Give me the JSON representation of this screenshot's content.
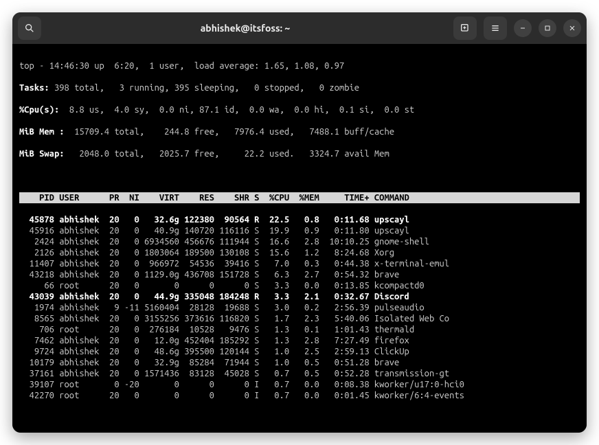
{
  "titlebar": {
    "title": "abhishek@itsfoss: ~"
  },
  "summary": {
    "line1_a": "top - 14:46:30 up  6:20,  1 user,  load average: 1.65, 1.08, 0.97",
    "tasks_label": "Tasks:",
    "tasks_rest": " 398 total,   3 running, 395 sleeping,   0 stopped,   0 zombie",
    "cpu_label": "%Cpu(s):",
    "cpu_rest": "  8.8 us,  4.0 sy,  0.0 ni, 87.1 id,  0.0 wa,  0.0 hi,  0.1 si,  0.0 st",
    "mem_label": "MiB Mem :",
    "mem_rest": "  15709.4 total,    244.8 free,   7976.4 used,   7488.1 buff/cache",
    "swap_label": "MiB Swap:",
    "swap_rest": "   2048.0 total,   2025.7 free,     22.2 used.   3324.7 avail Mem"
  },
  "columns": "    PID USER      PR  NI    VIRT    RES    SHR S  %CPU  %MEM     TIME+ COMMAND         ",
  "rows": [
    {
      "hl": true,
      "text": "  45878 abhishek  20   0   32.6g 122380  90564 R  22.5   0.8   0:11.68 upscayl         "
    },
    {
      "hl": false,
      "text": "  45916 abhishek  20   0   40.9g 140720 116116 S  19.9   0.9   0:11.80 upscayl         "
    },
    {
      "hl": false,
      "text": "   2424 abhishek  20   0 6934560 456676 111944 S  16.6   2.8  10:10.25 gnome-shell     "
    },
    {
      "hl": false,
      "text": "   2126 abhishek  20   0 1803064 189500 130108 S  15.6   1.2   8:24.68 Xorg            "
    },
    {
      "hl": false,
      "text": "  11407 abhishek  20   0  966972  54536  39416 S   7.0   0.3   0:44.38 x-terminal-emul "
    },
    {
      "hl": false,
      "text": "  43218 abhishek  20   0 1129.0g 436708 151728 S   6.3   2.7   0:54.32 brave           "
    },
    {
      "hl": false,
      "text": "     66 root      20   0       0      0      0 S   3.3   0.0   0:13.85 kcompactd0      "
    },
    {
      "hl": true,
      "text": "  43039 abhishek  20   0   44.9g 335048 184248 R   3.3   2.1   0:32.67 Discord         "
    },
    {
      "hl": false,
      "text": "   1974 abhishek   9 -11 5160404  28128  19688 S   3.0   0.2   2:56.39 pulseaudio      "
    },
    {
      "hl": false,
      "text": "   8565 abhishek  20   0 3155256 373616 116820 S   1.7   2.3   5:40.06 Isolated Web Co "
    },
    {
      "hl": false,
      "text": "    706 root      20   0  276184  10528   9476 S   1.3   0.1   1:01.43 thermald        "
    },
    {
      "hl": false,
      "text": "   7462 abhishek  20   0   12.0g 452404 185292 S   1.3   2.8   7:27.49 firefox         "
    },
    {
      "hl": false,
      "text": "   9724 abhishek  20   0   48.6g 395500 120144 S   1.0   2.5   2:59.13 ClickUp         "
    },
    {
      "hl": false,
      "text": "  10179 abhishek  20   0   32.9g  85284  71944 S   1.0   0.5   0:51.28 brave           "
    },
    {
      "hl": false,
      "text": "  37161 abhishek  20   0 1571436  83128  45028 S   0.7   0.5   0:52.28 transmission-gt "
    },
    {
      "hl": false,
      "text": "  39107 root       0 -20       0      0      0 I   0.7   0.0   0:08.38 kworker/u17:0-hci0"
    },
    {
      "hl": false,
      "text": "  42270 root      20   0       0      0      0 I   0.7   0.0   0:01.45 kworker/6:4-events"
    }
  ]
}
